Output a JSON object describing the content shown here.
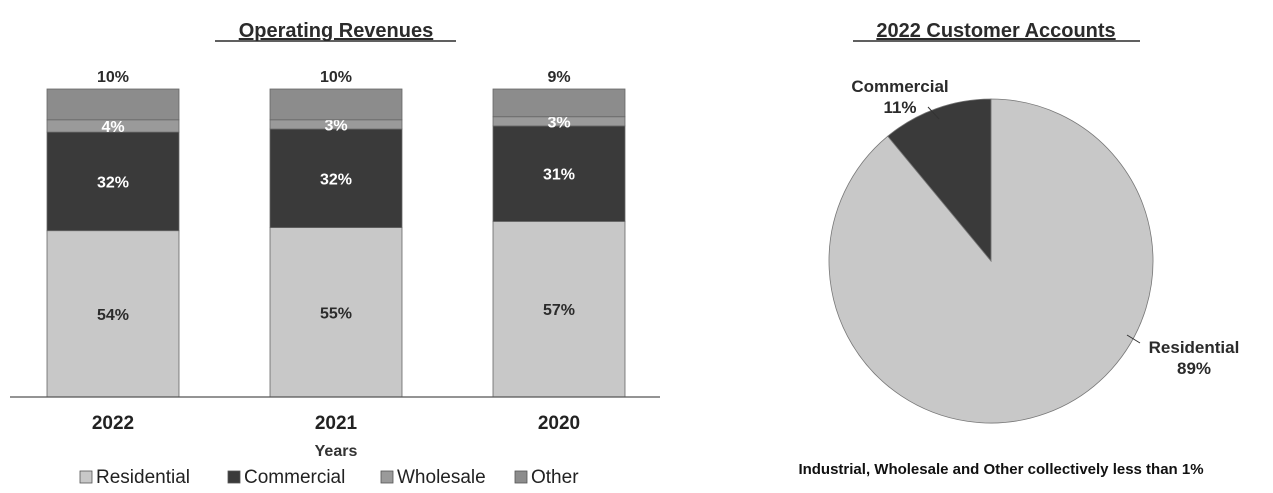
{
  "chart_data": [
    {
      "type": "bar",
      "stacked": true,
      "title": "Operating Revenues",
      "xlabel": "Years",
      "ylabel": "",
      "ylim": [
        0,
        100
      ],
      "categories": [
        "2022",
        "2021",
        "2020"
      ],
      "series": [
        {
          "name": "Residential",
          "color": "#c8c8c8",
          "label_color": "#2b2b2b",
          "values": [
            54,
            55,
            57
          ],
          "labels": [
            "54%",
            "55%",
            "57%"
          ]
        },
        {
          "name": "Commercial",
          "color": "#3a3a3a",
          "label_color": "#ffffff",
          "values": [
            32,
            32,
            31
          ],
          "labels": [
            "32%",
            "32%",
            "31%"
          ]
        },
        {
          "name": "Wholesale",
          "color": "#9a9a9a",
          "label_color": "#ffffff",
          "values": [
            4,
            3,
            3
          ],
          "labels": [
            "4%",
            "3%",
            "3%"
          ]
        },
        {
          "name": "Other",
          "color": "#8c8c8c",
          "label_color": "#2b2b2b",
          "values": [
            10,
            10,
            9
          ],
          "labels": [
            "10%",
            "10%",
            "9%"
          ]
        }
      ],
      "legend": "bottom"
    },
    {
      "type": "pie",
      "title": "2022 Customer Accounts",
      "slices": [
        {
          "name": "Commercial",
          "value": 11,
          "label": "11%",
          "color": "#3a3a3a"
        },
        {
          "name": "Residential",
          "value": 89,
          "label": "89%",
          "color": "#c8c8c8"
        }
      ],
      "note": "Industrial, Wholesale and Other collectively less than 1%"
    }
  ]
}
